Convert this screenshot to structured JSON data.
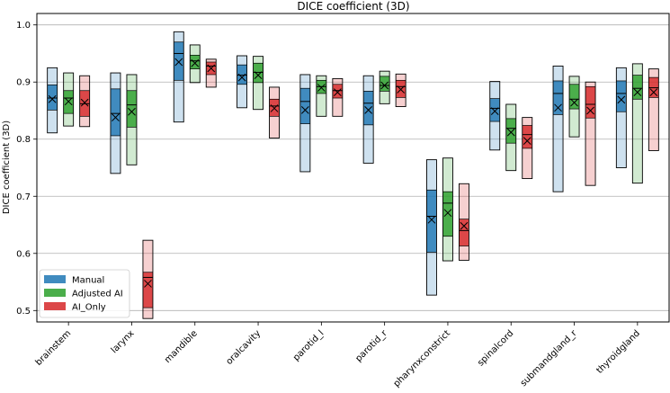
{
  "chart_data": {
    "type": "box",
    "title": "DICE coefficient (3D)",
    "xlabel": "",
    "ylabel": "DICE coefficient (3D)",
    "ylim": [
      0.48,
      1.02
    ],
    "yticks": [
      0.5,
      0.6,
      0.7,
      0.8,
      0.9,
      1.0
    ],
    "ytick_labels": [
      "0.5",
      "0.6",
      "0.7",
      "0.8",
      "0.9",
      "1.0"
    ],
    "grid": "horizontal",
    "legend_position": "lower-left",
    "categories": [
      "brainstem",
      "larynx",
      "mandible",
      "oralcavity",
      "parotid_l",
      "parotid_r",
      "pharynxconstrict",
      "spinalcord",
      "submandgland_r",
      "thyroidgland"
    ],
    "series": [
      {
        "name": "Manual",
        "color": "#1f77b4",
        "boxes": [
          {
            "min": 0.811,
            "q1": 0.851,
            "median": 0.872,
            "mean": 0.87,
            "q3": 0.895,
            "max": 0.925
          },
          {
            "min": 0.74,
            "q1": 0.806,
            "median": 0.845,
            "mean": 0.838,
            "q3": 0.888,
            "max": 0.916
          },
          {
            "min": 0.83,
            "q1": 0.903,
            "median": 0.95,
            "mean": 0.935,
            "q3": 0.97,
            "max": 0.988
          },
          {
            "min": 0.855,
            "q1": 0.896,
            "median": 0.912,
            "mean": 0.908,
            "q3": 0.93,
            "max": 0.946
          },
          {
            "min": 0.743,
            "q1": 0.827,
            "median": 0.866,
            "mean": 0.851,
            "q3": 0.889,
            "max": 0.913
          },
          {
            "min": 0.758,
            "q1": 0.825,
            "median": 0.863,
            "mean": 0.851,
            "q3": 0.884,
            "max": 0.911
          },
          {
            "min": 0.527,
            "q1": 0.602,
            "median": 0.665,
            "mean": 0.659,
            "q3": 0.711,
            "max": 0.764
          },
          {
            "min": 0.781,
            "q1": 0.831,
            "median": 0.854,
            "mean": 0.849,
            "q3": 0.871,
            "max": 0.901
          },
          {
            "min": 0.708,
            "q1": 0.843,
            "median": 0.88,
            "mean": 0.855,
            "q3": 0.902,
            "max": 0.928
          },
          {
            "min": 0.75,
            "q1": 0.848,
            "median": 0.88,
            "mean": 0.869,
            "q3": 0.902,
            "max": 0.925
          }
        ]
      },
      {
        "name": "Adjusted AI",
        "color": "#2ca02c",
        "boxes": [
          {
            "min": 0.823,
            "q1": 0.845,
            "median": 0.872,
            "mean": 0.866,
            "q3": 0.885,
            "max": 0.916
          },
          {
            "min": 0.755,
            "q1": 0.821,
            "median": 0.86,
            "mean": 0.848,
            "q3": 0.885,
            "max": 0.913
          },
          {
            "min": 0.899,
            "q1": 0.923,
            "median": 0.937,
            "mean": 0.933,
            "q3": 0.947,
            "max": 0.965
          },
          {
            "min": 0.852,
            "q1": 0.899,
            "median": 0.917,
            "mean": 0.912,
            "q3": 0.933,
            "max": 0.945
          },
          {
            "min": 0.84,
            "q1": 0.88,
            "median": 0.892,
            "mean": 0.89,
            "q3": 0.903,
            "max": 0.911
          },
          {
            "min": 0.862,
            "q1": 0.884,
            "median": 0.894,
            "mean": 0.894,
            "q3": 0.91,
            "max": 0.919
          },
          {
            "min": 0.587,
            "q1": 0.63,
            "median": 0.688,
            "mean": 0.671,
            "q3": 0.708,
            "max": 0.767
          },
          {
            "min": 0.745,
            "q1": 0.793,
            "median": 0.819,
            "mean": 0.812,
            "q3": 0.836,
            "max": 0.861
          },
          {
            "min": 0.804,
            "q1": 0.853,
            "median": 0.87,
            "mean": 0.864,
            "q3": 0.896,
            "max": 0.91
          },
          {
            "min": 0.723,
            "q1": 0.87,
            "median": 0.889,
            "mean": 0.882,
            "q3": 0.912,
            "max": 0.932
          }
        ]
      },
      {
        "name": "AI_Only",
        "color": "#d62728",
        "boxes": [
          {
            "min": 0.822,
            "q1": 0.84,
            "median": 0.862,
            "mean": 0.864,
            "q3": 0.885,
            "max": 0.911
          },
          {
            "min": 0.486,
            "q1": 0.505,
            "median": 0.558,
            "mean": 0.547,
            "q3": 0.567,
            "max": 0.623
          },
          {
            "min": 0.891,
            "q1": 0.913,
            "median": 0.928,
            "mean": 0.924,
            "q3": 0.935,
            "max": 0.94
          },
          {
            "min": 0.802,
            "q1": 0.84,
            "median": 0.858,
            "mean": 0.854,
            "q3": 0.87,
            "max": 0.891
          },
          {
            "min": 0.84,
            "q1": 0.872,
            "median": 0.885,
            "mean": 0.882,
            "q3": 0.896,
            "max": 0.906
          },
          {
            "min": 0.857,
            "q1": 0.873,
            "median": 0.892,
            "mean": 0.887,
            "q3": 0.903,
            "max": 0.914
          },
          {
            "min": 0.588,
            "q1": 0.613,
            "median": 0.64,
            "mean": 0.648,
            "q3": 0.66,
            "max": 0.722
          },
          {
            "min": 0.731,
            "q1": 0.784,
            "median": 0.808,
            "mean": 0.797,
            "q3": 0.824,
            "max": 0.838
          },
          {
            "min": 0.719,
            "q1": 0.837,
            "median": 0.861,
            "mean": 0.85,
            "q3": 0.892,
            "max": 0.9
          },
          {
            "min": 0.78,
            "q1": 0.873,
            "median": 0.89,
            "mean": 0.882,
            "q3": 0.908,
            "max": 0.923
          }
        ]
      }
    ]
  }
}
